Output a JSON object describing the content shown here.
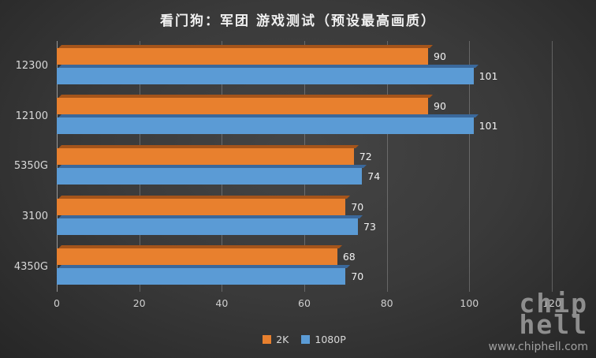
{
  "title": "看门狗：军团 游戏测试（预设最高画质）",
  "chart_data": {
    "type": "bar",
    "orientation": "horizontal",
    "title": "看门狗：军团 游戏测试（预设最高画质）",
    "categories": [
      "12300",
      "12100",
      "5350G",
      "3100",
      "4350G"
    ],
    "series": [
      {
        "name": "2K",
        "color": "#E8802E",
        "dark_color": "#A5541A",
        "values": [
          90,
          90,
          72,
          70,
          68
        ]
      },
      {
        "name": "1080P",
        "color": "#5B9BD5",
        "dark_color": "#3A689B",
        "values": [
          101,
          101,
          74,
          73,
          70
        ]
      }
    ],
    "xlim": [
      0,
      120
    ],
    "x_ticks": [
      0,
      20,
      40,
      60,
      80,
      100,
      120
    ],
    "grid": true,
    "legend_position": "bottom"
  },
  "watermark": {
    "logo_line1": "chip",
    "logo_line2": "hell",
    "url": "www.chiphell.com"
  }
}
